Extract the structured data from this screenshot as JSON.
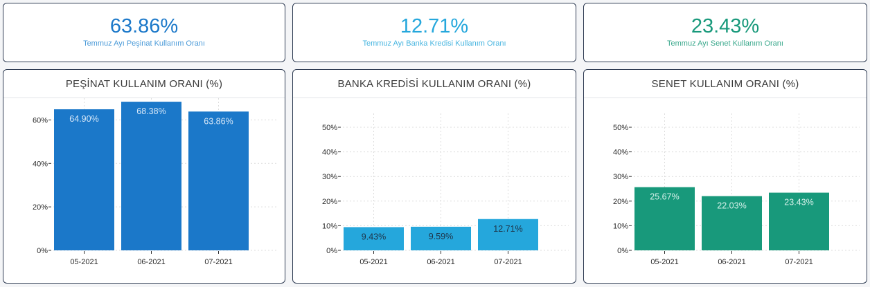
{
  "kpis": [
    {
      "value": "63.86%",
      "label": "Temmuz Ayı Peşinat Kullanım Oranı",
      "color": "#1b78c9",
      "label_color": "#4a9ad8"
    },
    {
      "value": "12.71%",
      "label": "Temmuz Ayı Banka Kredisi Kullanım Oranı",
      "color": "#25a7dc",
      "label_color": "#47b5e0"
    },
    {
      "value": "23.43%",
      "label": "Temmuz Ayı Senet Kullanım Oranı",
      "color": "#18997b",
      "label_color": "#3aa88c"
    }
  ],
  "chart_data": [
    {
      "type": "bar",
      "title": "PEŞİNAT KULLANIM ORANI (%)",
      "categories": [
        "05-2021",
        "06-2021",
        "07-2021"
      ],
      "values": [
        64.9,
        68.38,
        63.86
      ],
      "data_labels": [
        "64.90%",
        "68.38%",
        "63.86%"
      ],
      "yticks": [
        0,
        20,
        40,
        60
      ],
      "ytick_labels": [
        "0%",
        "20%",
        "40%",
        "60%"
      ],
      "ylim": [
        0,
        70
      ],
      "color": "#1b78c9",
      "label_color": "#d8e8f8",
      "grid": true
    },
    {
      "type": "bar",
      "title": "BANKA KREDİSİ KULLANIM ORANI (%)",
      "categories": [
        "05-2021",
        "06-2021",
        "07-2021"
      ],
      "values": [
        9.43,
        9.59,
        12.71
      ],
      "data_labels": [
        "9.43%",
        "9.59%",
        "12.71%"
      ],
      "yticks": [
        0,
        10,
        20,
        30,
        40,
        50
      ],
      "ytick_labels": [
        "0%",
        "10%",
        "20%",
        "30%",
        "40%",
        "50%"
      ],
      "ylim": [
        0,
        55
      ],
      "color": "#25a7dc",
      "label_color": "#1f3347",
      "grid": true
    },
    {
      "type": "bar",
      "title": "SENET KULLANIM ORANI (%)",
      "categories": [
        "05-2021",
        "06-2021",
        "07-2021"
      ],
      "values": [
        25.67,
        22.03,
        23.43
      ],
      "data_labels": [
        "25.67%",
        "22.03%",
        "23.43%"
      ],
      "yticks": [
        0,
        10,
        20,
        30,
        40,
        50
      ],
      "ytick_labels": [
        "0%",
        "10%",
        "20%",
        "30%",
        "40%",
        "50%"
      ],
      "ylim": [
        0,
        55
      ],
      "color": "#18997b",
      "label_color": "#d6f1ea",
      "grid": true
    }
  ]
}
